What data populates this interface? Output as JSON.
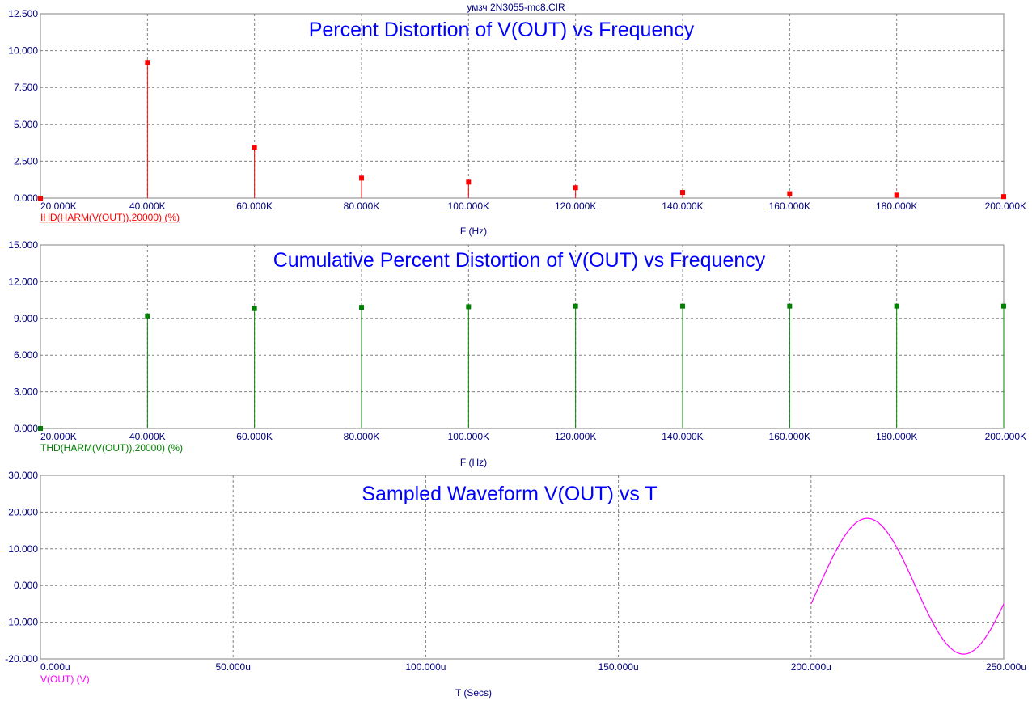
{
  "window": {
    "title": "умзч 2N3055-mc8.CIR"
  },
  "colors": {
    "axis_text": "#000080",
    "title": "#0000ff",
    "grid": "#808080"
  },
  "chart_data": [
    {
      "type": "bar",
      "title": "Percent Distortion of V(OUT) vs Frequency",
      "xlabel": "F (Hz)",
      "trace_label": "IHD(HARM(V(OUT)),20000) (%)",
      "trace_color": "#ff0000",
      "trace_label_underline": true,
      "xlim": [
        20000,
        200000
      ],
      "ylim": [
        0,
        12.5
      ],
      "x_ticks": [
        20000,
        40000,
        60000,
        80000,
        100000,
        120000,
        140000,
        160000,
        180000,
        200000
      ],
      "x_tick_labels": [
        "20.000K",
        "40.000K",
        "60.000K",
        "80.000K",
        "100.000K",
        "120.000K",
        "140.000K",
        "160.000K",
        "180.000K",
        "200.000K"
      ],
      "y_ticks": [
        0,
        2.5,
        5,
        7.5,
        10,
        12.5
      ],
      "y_tick_labels": [
        "0.000",
        "2.500",
        "5.000",
        "7.500",
        "10.000",
        "12.500"
      ],
      "x": [
        20000,
        40000,
        60000,
        80000,
        100000,
        120000,
        140000,
        160000,
        180000,
        200000
      ],
      "values": [
        0,
        9.2,
        3.45,
        1.35,
        1.08,
        0.7,
        0.38,
        0.3,
        0.2,
        0.1
      ],
      "grid": true
    },
    {
      "type": "bar",
      "title": "Cumulative Percent Distortion of V(OUT) vs Frequency",
      "xlabel": "F (Hz)",
      "trace_label": "THD(HARM(V(OUT)),20000) (%)",
      "trace_color": "#008000",
      "trace_label_underline": false,
      "xlim": [
        20000,
        200000
      ],
      "ylim": [
        0,
        15
      ],
      "x_ticks": [
        20000,
        40000,
        60000,
        80000,
        100000,
        120000,
        140000,
        160000,
        180000,
        200000
      ],
      "x_tick_labels": [
        "20.000K",
        "40.000K",
        "60.000K",
        "80.000K",
        "100.000K",
        "120.000K",
        "140.000K",
        "160.000K",
        "180.000K",
        "200.000K"
      ],
      "y_ticks": [
        0,
        3,
        6,
        9,
        12,
        15
      ],
      "y_tick_labels": [
        "0.000",
        "3.000",
        "6.000",
        "9.000",
        "12.000",
        "15.000"
      ],
      "x": [
        20000,
        40000,
        60000,
        80000,
        100000,
        120000,
        140000,
        160000,
        180000,
        200000
      ],
      "values": [
        0,
        9.2,
        9.8,
        9.9,
        9.95,
        10.0,
        10.0,
        10.0,
        10.0,
        10.0
      ],
      "grid": true
    },
    {
      "type": "line",
      "title": "Sampled Waveform  V(OUT) vs T",
      "xlabel": "T (Secs)",
      "trace_label": "V(OUT) (V)",
      "trace_color": "#ff00ff",
      "trace_label_underline": false,
      "xlim": [
        0,
        0.00025
      ],
      "ylim": [
        -20,
        30
      ],
      "x_ticks": [
        0,
        5e-05,
        0.0001,
        0.00015,
        0.0002,
        0.00025
      ],
      "x_tick_labels": [
        "0.000u",
        "50.000u",
        "100.000u",
        "150.000u",
        "200.000u",
        "250.000u"
      ],
      "y_ticks": [
        -20,
        -10,
        0,
        10,
        20,
        30
      ],
      "y_tick_labels": [
        "-20.000",
        "-10.000",
        "0.000",
        "10.000",
        "20.000",
        "30.000"
      ],
      "sine": {
        "t_start": 0.0002,
        "t_end": 0.00025,
        "offset": -0.2,
        "amplitude": 18.5,
        "frequency_hz": 20000,
        "start_value": -5
      },
      "grid": true
    }
  ]
}
